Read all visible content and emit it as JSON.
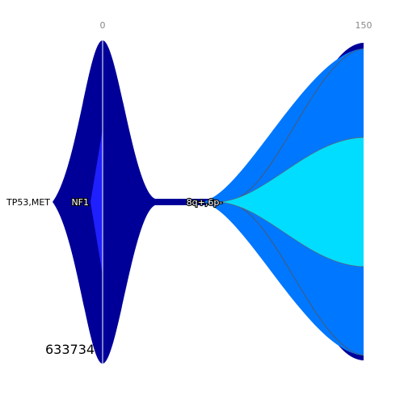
{
  "axis": {
    "ticks": [
      {
        "label": "0",
        "time": 0
      },
      {
        "label": "150",
        "time": 150
      }
    ]
  },
  "sample_id": "633734",
  "colors": {
    "founder": "#000099",
    "subclone_a": "#2020ff",
    "subclone_b": "#0077ff",
    "subclone_c": "#00ddff",
    "timepoint_line": "#ffffff"
  },
  "events": [
    {
      "label": "TP53,MET",
      "clone": "founder",
      "style": "plain"
    },
    {
      "label": "NF1",
      "clone": "subclone_a",
      "style": "halo"
    },
    {
      "label": "8q+,6p-",
      "clone": "subclone_b",
      "style": "halo"
    }
  ],
  "clones": [
    {
      "id": "founder",
      "color_key": "founder"
    },
    {
      "id": "subclone_a",
      "color_key": "subclone_a"
    },
    {
      "id": "subclone_b",
      "color_key": "subclone_b"
    },
    {
      "id": "subclone_c",
      "color_key": "subclone_c"
    }
  ]
}
